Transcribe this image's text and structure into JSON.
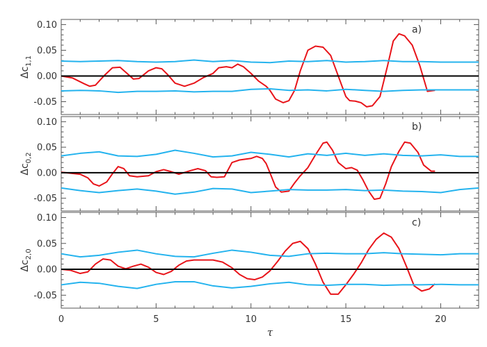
{
  "chart_data": {
    "type": "line",
    "xlabel": "τ",
    "xlim": [
      0,
      22
    ],
    "x_ticks": [
      0,
      5,
      10,
      15,
      20
    ],
    "colors": {
      "signal": "#e8141a",
      "envelope": "#24b3ee",
      "zero": "#000000"
    },
    "panels": [
      {
        "label": "a)",
        "ylabel_base": "Δc",
        "ylabel_sub": "1,1",
        "ylim": [
          -0.075,
          0.11
        ],
        "y_ticks": [
          "0.10",
          "0.05",
          "0.00",
          "-0.05"
        ],
        "series": [
          {
            "role": "signal",
            "x": [
              0,
              0.6,
              1.2,
              1.5,
              1.8,
              2.3,
              2.7,
              3.1,
              3.5,
              3.8,
              4.1,
              4.6,
              5.0,
              5.3,
              5.6,
              6.0,
              6.5,
              7.0,
              7.5,
              8.0,
              8.3,
              8.7,
              9.0,
              9.3,
              9.6,
              10.0,
              10.4,
              10.8,
              11.0,
              11.3,
              11.7,
              12.0,
              12.3,
              12.6,
              13.0,
              13.4,
              13.8,
              14.2,
              14.6,
              15.0,
              15.2,
              15.5,
              15.8,
              16.1,
              16.4,
              16.8,
              17.2,
              17.5,
              17.8,
              18.1,
              18.5,
              18.9,
              19.3,
              19.7
            ],
            "y": [
              0,
              -0.004,
              -0.015,
              -0.02,
              -0.018,
              0.002,
              0.016,
              0.017,
              0.004,
              -0.006,
              -0.005,
              0.01,
              0.016,
              0.014,
              0.003,
              -0.014,
              -0.02,
              -0.014,
              -0.003,
              0.005,
              0.016,
              0.018,
              0.016,
              0.023,
              0.018,
              0.005,
              -0.01,
              -0.02,
              -0.028,
              -0.045,
              -0.052,
              -0.048,
              -0.028,
              0.01,
              0.05,
              0.058,
              0.056,
              0.04,
              0,
              -0.04,
              -0.048,
              -0.049,
              -0.052,
              -0.06,
              -0.058,
              -0.04,
              0.02,
              0.068,
              0.082,
              0.078,
              0.06,
              0.02,
              -0.03,
              -0.028
            ]
          },
          {
            "role": "envelope",
            "x": [
              0,
              1,
              2,
              3,
              4,
              5,
              6,
              7,
              8,
              9,
              10,
              11,
              12,
              13,
              14,
              15,
              16,
              17,
              18,
              19,
              20,
              21,
              22
            ],
            "y": [
              0.029,
              0.028,
              0.029,
              0.03,
              0.028,
              0.027,
              0.028,
              0.031,
              0.028,
              0.03,
              0.027,
              0.026,
              0.029,
              0.028,
              0.03,
              0.027,
              0.028,
              0.03,
              0.028,
              0.028,
              0.027,
              0.027,
              0.027
            ]
          },
          {
            "role": "envelope",
            "x": [
              0,
              1,
              2,
              3,
              4,
              5,
              6,
              7,
              8,
              9,
              10,
              11,
              12,
              13,
              14,
              15,
              16,
              17,
              18,
              19,
              20,
              21,
              22
            ],
            "y": [
              -0.029,
              -0.028,
              -0.029,
              -0.032,
              -0.03,
              -0.03,
              -0.029,
              -0.031,
              -0.03,
              -0.03,
              -0.026,
              -0.025,
              -0.028,
              -0.027,
              -0.029,
              -0.026,
              -0.028,
              -0.03,
              -0.028,
              -0.027,
              -0.027,
              -0.027,
              -0.027
            ]
          },
          {
            "role": "zero",
            "x": [
              0,
              22
            ],
            "y": [
              0,
              0
            ]
          }
        ]
      },
      {
        "label": "b)",
        "ylabel_base": "Δc",
        "ylabel_sub": "0,2",
        "ylim": [
          -0.075,
          0.11
        ],
        "y_ticks": [
          "0.10",
          "0.05",
          "0.00",
          "-0.05"
        ],
        "series": [
          {
            "role": "signal",
            "x": [
              0,
              0.5,
              1.0,
              1.4,
              1.7,
              2.0,
              2.4,
              2.7,
              3.0,
              3.3,
              3.6,
              4.0,
              4.6,
              5.0,
              5.4,
              5.8,
              6.2,
              6.8,
              7.2,
              7.6,
              7.9,
              8.2,
              8.6,
              9.0,
              9.4,
              10.0,
              10.3,
              10.6,
              10.8,
              11.0,
              11.3,
              11.6,
              12.0,
              12.3,
              12.6,
              13.0,
              13.4,
              13.8,
              14.0,
              14.3,
              14.6,
              15.0,
              15.3,
              15.6,
              15.9,
              16.2,
              16.5,
              16.8,
              17.1,
              17.4,
              17.8,
              18.1,
              18.4,
              18.8,
              19.1,
              19.5,
              19.7
            ],
            "y": [
              0.001,
              -0.001,
              -0.003,
              -0.01,
              -0.022,
              -0.026,
              -0.018,
              -0.002,
              0.012,
              0.008,
              -0.006,
              -0.008,
              -0.006,
              0.002,
              0.006,
              0.002,
              -0.003,
              0.004,
              0.008,
              0.004,
              -0.008,
              -0.009,
              -0.008,
              0.02,
              0.025,
              0.028,
              0.032,
              0.028,
              0.018,
              0,
              -0.028,
              -0.038,
              -0.036,
              -0.02,
              -0.006,
              0.01,
              0.035,
              0.058,
              0.06,
              0.044,
              0.02,
              0.008,
              0.01,
              0.005,
              -0.014,
              -0.036,
              -0.052,
              -0.05,
              -0.022,
              0.012,
              0.042,
              0.06,
              0.058,
              0.04,
              0.015,
              0.003,
              0.003
            ]
          },
          {
            "role": "envelope",
            "x": [
              0,
              1,
              2,
              3,
              4,
              5,
              6,
              7,
              8,
              9,
              10,
              11,
              12,
              13,
              14,
              15,
              16,
              17,
              18,
              19,
              20,
              21,
              22
            ],
            "y": [
              0.033,
              0.038,
              0.041,
              0.033,
              0.032,
              0.036,
              0.044,
              0.038,
              0.031,
              0.033,
              0.04,
              0.036,
              0.031,
              0.037,
              0.034,
              0.038,
              0.034,
              0.037,
              0.034,
              0.033,
              0.035,
              0.032,
              0.032
            ]
          },
          {
            "role": "envelope",
            "x": [
              0,
              1,
              2,
              3,
              4,
              5,
              6,
              7,
              8,
              9,
              10,
              11,
              12,
              13,
              14,
              15,
              16,
              17,
              18,
              19,
              20,
              21,
              22
            ],
            "y": [
              -0.03,
              -0.035,
              -0.039,
              -0.035,
              -0.032,
              -0.036,
              -0.042,
              -0.038,
              -0.031,
              -0.032,
              -0.039,
              -0.036,
              -0.033,
              -0.034,
              -0.034,
              -0.033,
              -0.035,
              -0.034,
              -0.036,
              -0.037,
              -0.039,
              -0.033,
              -0.03
            ]
          },
          {
            "role": "zero",
            "x": [
              0,
              22
            ],
            "y": [
              0,
              0
            ]
          }
        ]
      },
      {
        "label": "c)",
        "ylabel_base": "Δc",
        "ylabel_sub": "2,0",
        "ylim": [
          -0.075,
          0.11
        ],
        "y_ticks": [
          "0.10",
          "0.05",
          "0.00",
          "-0.05"
        ],
        "series": [
          {
            "role": "signal",
            "x": [
              0,
              0.5,
              1.0,
              1.4,
              1.8,
              2.2,
              2.6,
              3.0,
              3.4,
              3.8,
              4.2,
              4.6,
              5.0,
              5.4,
              5.8,
              6.2,
              6.6,
              7.0,
              7.5,
              8.0,
              8.5,
              9.0,
              9.4,
              9.8,
              10.2,
              10.6,
              11.0,
              11.4,
              11.8,
              12.2,
              12.6,
              13.0,
              13.4,
              13.8,
              14.2,
              14.6,
              15.0,
              15.4,
              15.8,
              16.2,
              16.6,
              17.0,
              17.4,
              17.8,
              18.2,
              18.6,
              19.0,
              19.4,
              19.7
            ],
            "y": [
              0,
              -0.002,
              -0.008,
              -0.005,
              0.01,
              0.02,
              0.018,
              0.006,
              0.001,
              0.006,
              0.01,
              0.004,
              -0.006,
              -0.01,
              -0.004,
              0.008,
              0.016,
              0.018,
              0.018,
              0.018,
              0.014,
              0.003,
              -0.01,
              -0.018,
              -0.02,
              -0.015,
              -0.003,
              0.015,
              0.035,
              0.05,
              0.054,
              0.04,
              0.01,
              -0.025,
              -0.048,
              -0.048,
              -0.03,
              -0.01,
              0.012,
              0.038,
              0.058,
              0.07,
              0.062,
              0.04,
              0.005,
              -0.032,
              -0.042,
              -0.038,
              -0.028
            ]
          },
          {
            "role": "envelope",
            "x": [
              0,
              1,
              2,
              3,
              4,
              5,
              6,
              7,
              8,
              9,
              10,
              11,
              12,
              13,
              14,
              15,
              16,
              17,
              18,
              19,
              20,
              21,
              22
            ],
            "y": [
              0.03,
              0.024,
              0.027,
              0.033,
              0.037,
              0.03,
              0.025,
              0.024,
              0.031,
              0.037,
              0.033,
              0.027,
              0.025,
              0.03,
              0.031,
              0.03,
              0.03,
              0.032,
              0.03,
              0.029,
              0.028,
              0.03,
              0.03
            ]
          },
          {
            "role": "envelope",
            "x": [
              0,
              1,
              2,
              3,
              4,
              5,
              6,
              7,
              8,
              9,
              10,
              11,
              12,
              13,
              14,
              15,
              16,
              17,
              18,
              19,
              20,
              21,
              22
            ],
            "y": [
              -0.03,
              -0.025,
              -0.027,
              -0.033,
              -0.037,
              -0.029,
              -0.024,
              -0.024,
              -0.032,
              -0.036,
              -0.033,
              -0.028,
              -0.025,
              -0.03,
              -0.031,
              -0.029,
              -0.029,
              -0.031,
              -0.03,
              -0.03,
              -0.029,
              -0.03,
              -0.03
            ]
          },
          {
            "role": "zero",
            "x": [
              0,
              22
            ],
            "y": [
              0,
              0
            ]
          }
        ]
      }
    ]
  }
}
